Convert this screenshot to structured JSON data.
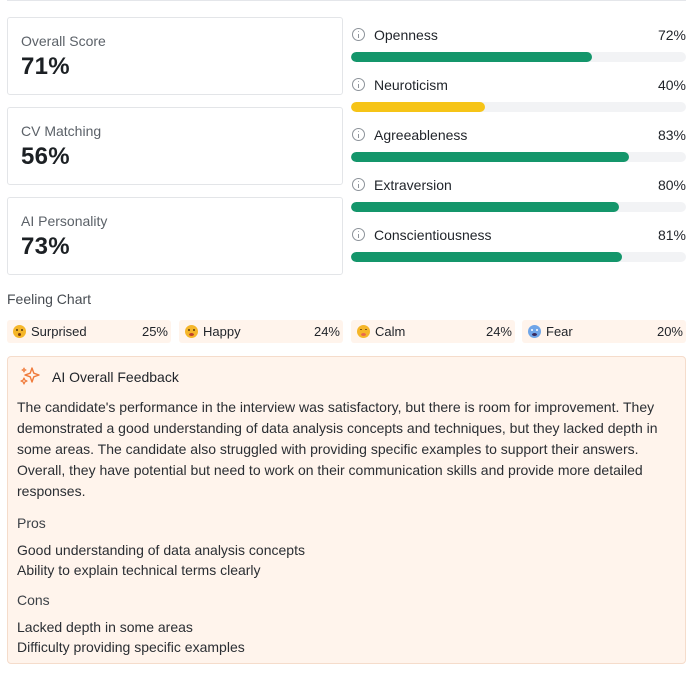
{
  "scores": [
    {
      "label": "Overall Score",
      "value": "71%"
    },
    {
      "label": "CV Matching",
      "value": "56%"
    },
    {
      "label": "AI Personality",
      "value": "73%"
    }
  ],
  "traits": [
    {
      "name": "Openness",
      "percent_label": "72%",
      "value": 0.72,
      "color": "#14966b"
    },
    {
      "name": "Neuroticism",
      "percent_label": "40%",
      "value": 0.4,
      "color": "#f6c417"
    },
    {
      "name": "Agreeableness",
      "percent_label": "83%",
      "value": 0.83,
      "color": "#14966b"
    },
    {
      "name": "Extraversion",
      "percent_label": "80%",
      "value": 0.8,
      "color": "#14966b"
    },
    {
      "name": "Conscientiousness",
      "percent_label": "81%",
      "value": 0.81,
      "color": "#14966b"
    }
  ],
  "feeling_chart": {
    "title": "Feeling Chart",
    "items": [
      {
        "label": "Surprised",
        "percent": "25%",
        "icon": "surprised-emoji"
      },
      {
        "label": "Happy",
        "percent": "24%",
        "icon": "happy-emoji"
      },
      {
        "label": "Calm",
        "percent": "24%",
        "icon": "calm-emoji"
      },
      {
        "label": "Fear",
        "percent": "20%",
        "icon": "fear-emoji"
      }
    ]
  },
  "feedback": {
    "title": "AI Overall Feedback",
    "icon": "sparkle-icon",
    "summary": "The candidate's performance in the interview was satisfactory, but there is room for improvement. They demonstrated a good understanding of data analysis concepts and techniques, but they lacked depth in some areas. The candidate also struggled with providing specific examples to support their answers. Overall, they have potential but need to work on their communication skills and provide more detailed responses.",
    "pros_title": "Pros",
    "pros": [
      "Good understanding of data analysis concepts",
      "Ability to explain technical terms clearly"
    ],
    "cons_title": "Cons",
    "cons": [
      "Lacked depth in some areas",
      "Difficulty providing specific examples"
    ]
  },
  "colors": {
    "accent_green": "#14966b",
    "accent_yellow": "#f6c417",
    "feedback_bg": "#fff4ec"
  }
}
